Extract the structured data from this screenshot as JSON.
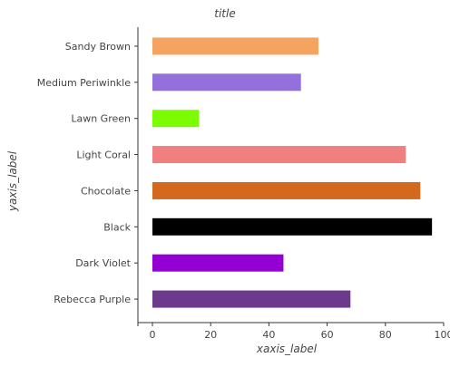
{
  "chart_data": {
    "type": "bar",
    "orientation": "horizontal",
    "title": "title",
    "xlabel": "xaxis_label",
    "ylabel": "yaxis_label",
    "categories": [
      "Rebecca Purple",
      "Dark Violet",
      "Black",
      "Chocolate",
      "Light Coral",
      "Lawn Green",
      "Medium Periwinkle",
      "Sandy Brown"
    ],
    "values": [
      68,
      45,
      96,
      92,
      87,
      16,
      51,
      57
    ],
    "colors": [
      "#6b3a8c",
      "#9400d3",
      "#000000",
      "#d2691e",
      "#f08080",
      "#7cfc00",
      "#9370db",
      "#f4a460"
    ],
    "xlim": [
      0,
      100
    ],
    "xticks": [
      0,
      20,
      40,
      60,
      80,
      100
    ],
    "xtick_labels": [
      "0",
      "20",
      "40",
      "60",
      "80",
      "100"
    ],
    "grid": false,
    "legend": "none"
  }
}
